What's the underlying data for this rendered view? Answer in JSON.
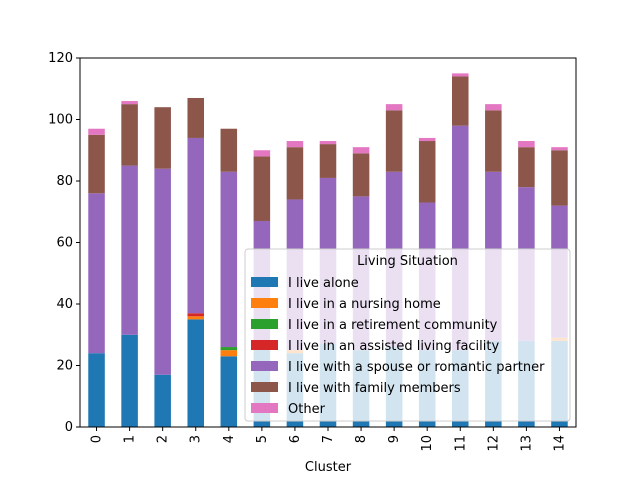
{
  "chart_data": {
    "type": "bar",
    "stacked": true,
    "xlabel": "Cluster",
    "ylabel": "",
    "ylim": [
      0,
      120
    ],
    "yticks": [
      0,
      20,
      40,
      60,
      80,
      100,
      120
    ],
    "categories": [
      "0",
      "1",
      "2",
      "3",
      "4",
      "5",
      "6",
      "7",
      "8",
      "9",
      "10",
      "11",
      "12",
      "13",
      "14"
    ],
    "legend": {
      "title": "Living Situation",
      "placement": "lower-right"
    },
    "series": [
      {
        "name": "I live alone",
        "color": "#1f77b4",
        "values": [
          24,
          30,
          17,
          35,
          23,
          27,
          24,
          27,
          25,
          26,
          25,
          25,
          28,
          28,
          28
        ]
      },
      {
        "name": "I live in a nursing home",
        "color": "#ff7f0e",
        "values": [
          0,
          0,
          0,
          1,
          2,
          0,
          1,
          0,
          0,
          0,
          0,
          0,
          0,
          0,
          1
        ]
      },
      {
        "name": "I live in a retirement community",
        "color": "#2ca02c",
        "values": [
          0,
          0,
          0,
          0,
          1,
          0,
          0,
          0,
          0,
          0,
          0,
          0,
          0,
          0,
          0
        ]
      },
      {
        "name": "I live in an assisted living facility",
        "color": "#d62728",
        "values": [
          0,
          0,
          0,
          1,
          0,
          0,
          0,
          0,
          0,
          0,
          0,
          0,
          0,
          0,
          0
        ]
      },
      {
        "name": "I live with a spouse or romantic partner",
        "color": "#9467bd",
        "values": [
          52,
          55,
          67,
          57,
          57,
          40,
          49,
          54,
          50,
          57,
          48,
          73,
          55,
          50,
          43
        ]
      },
      {
        "name": "I live with family members",
        "color": "#8c564b",
        "values": [
          19,
          20,
          20,
          13,
          14,
          21,
          17,
          11,
          14,
          20,
          20,
          16,
          20,
          13,
          18
        ]
      },
      {
        "name": "Other",
        "color": "#e377c2",
        "values": [
          2,
          1,
          0,
          0,
          0,
          2,
          2,
          1,
          2,
          2,
          1,
          1,
          2,
          2,
          1
        ]
      }
    ]
  }
}
